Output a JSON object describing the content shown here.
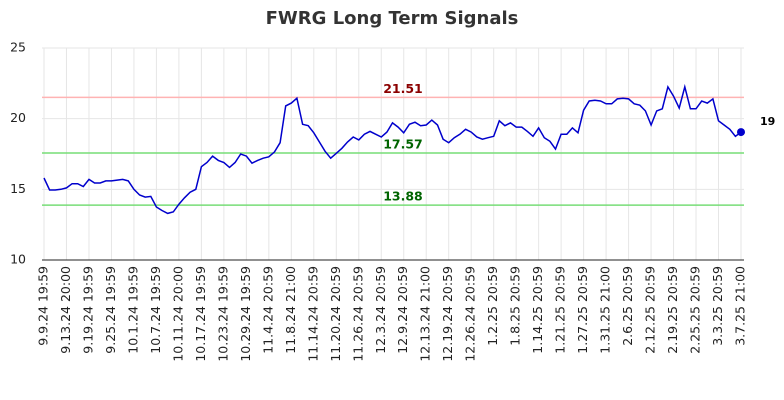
{
  "chart_data": {
    "type": "line",
    "title": "FWRG Long Term Signals",
    "categories": [
      "9.9.24 19:59",
      null,
      null,
      null,
      "9.13.24 20:00",
      null,
      null,
      null,
      "9.19.24 19:59",
      null,
      null,
      null,
      "9.25.24 19:59",
      null,
      null,
      null,
      "10.1.24 19:59",
      null,
      null,
      null,
      "10.7.24 19:59",
      null,
      null,
      null,
      "10.11.24 20:00",
      null,
      null,
      null,
      "10.17.24 19:59",
      null,
      null,
      null,
      "10.23.24 19:59",
      null,
      null,
      null,
      "10.29.24 19:59",
      null,
      null,
      null,
      "11.4.24 20:59",
      null,
      null,
      null,
      "11.8.24 21:00",
      null,
      null,
      null,
      "11.14.24 20:59",
      null,
      null,
      null,
      "11.20.24 20:59",
      null,
      null,
      null,
      "11.26.24 20:59",
      null,
      null,
      null,
      "12.3.24 20:59",
      null,
      null,
      null,
      "12.9.24 20:59",
      null,
      null,
      null,
      "12.13.24 21:00",
      null,
      null,
      null,
      "12.19.24 20:59",
      null,
      null,
      null,
      "12.26.24 20:59",
      null,
      null,
      null,
      "1.2.25 20:59",
      null,
      null,
      null,
      "1.8.25 20:59",
      null,
      null,
      null,
      "1.14.25 20:59",
      null,
      null,
      null,
      "1.21.25 20:59",
      null,
      null,
      null,
      "1.27.25 20:59",
      null,
      null,
      null,
      "1.31.25 21:00",
      null,
      null,
      null,
      "2.6.25 20:59",
      null,
      null,
      null,
      "2.12.25 20:59",
      null,
      null,
      null,
      "2.19.25 20:59",
      null,
      null,
      null,
      "2.25.25 20:59",
      null,
      null,
      null,
      "3.3.25 20:59",
      null,
      null,
      null,
      "3.7.25 21:00"
    ],
    "values": [
      15.8,
      14.95,
      14.95,
      15.0,
      15.1,
      15.4,
      15.4,
      15.2,
      15.7,
      15.45,
      15.45,
      15.6,
      15.6,
      15.65,
      15.7,
      15.6,
      15.0,
      14.6,
      14.45,
      14.5,
      13.75,
      13.5,
      13.3,
      13.4,
      13.95,
      14.4,
      14.8,
      15.0,
      16.6,
      16.9,
      17.35,
      17.05,
      16.9,
      16.55,
      16.9,
      17.5,
      17.35,
      16.85,
      17.05,
      17.2,
      17.3,
      17.65,
      18.3,
      20.9,
      21.1,
      21.45,
      19.6,
      19.5,
      19.0,
      18.35,
      17.7,
      17.2,
      17.55,
      17.9,
      18.35,
      18.7,
      18.5,
      18.9,
      19.1,
      18.9,
      18.7,
      19.05,
      19.7,
      19.4,
      19.0,
      19.6,
      19.75,
      19.5,
      19.55,
      19.9,
      19.55,
      18.55,
      18.3,
      18.65,
      18.9,
      19.25,
      19.05,
      18.7,
      18.55,
      18.65,
      18.75,
      19.85,
      19.5,
      19.7,
      19.4,
      19.4,
      19.1,
      18.75,
      19.35,
      18.65,
      18.4,
      17.85,
      18.9,
      18.9,
      19.35,
      19.0,
      20.6,
      21.25,
      21.3,
      21.25,
      21.05,
      21.05,
      21.4,
      21.45,
      21.4,
      21.05,
      20.95,
      20.55,
      19.55,
      20.55,
      20.7,
      22.25,
      21.6,
      20.75,
      22.25,
      20.7,
      20.7,
      21.25,
      21.1,
      21.4,
      19.85,
      19.55,
      19.25,
      18.75,
      19.05
    ],
    "color": "#0000cc",
    "end_label": "19",
    "hlines": [
      {
        "value": 21.51,
        "color": "#ffb3b3",
        "label_color": "#8b0000"
      },
      {
        "value": 17.57,
        "color": "#77dd77",
        "label_color": "#006400"
      },
      {
        "value": 13.88,
        "color": "#77dd77",
        "label_color": "#006400"
      }
    ],
    "ylim": [
      10,
      25
    ],
    "yticks": [
      10,
      15,
      20,
      25
    ],
    "grid": true
  }
}
